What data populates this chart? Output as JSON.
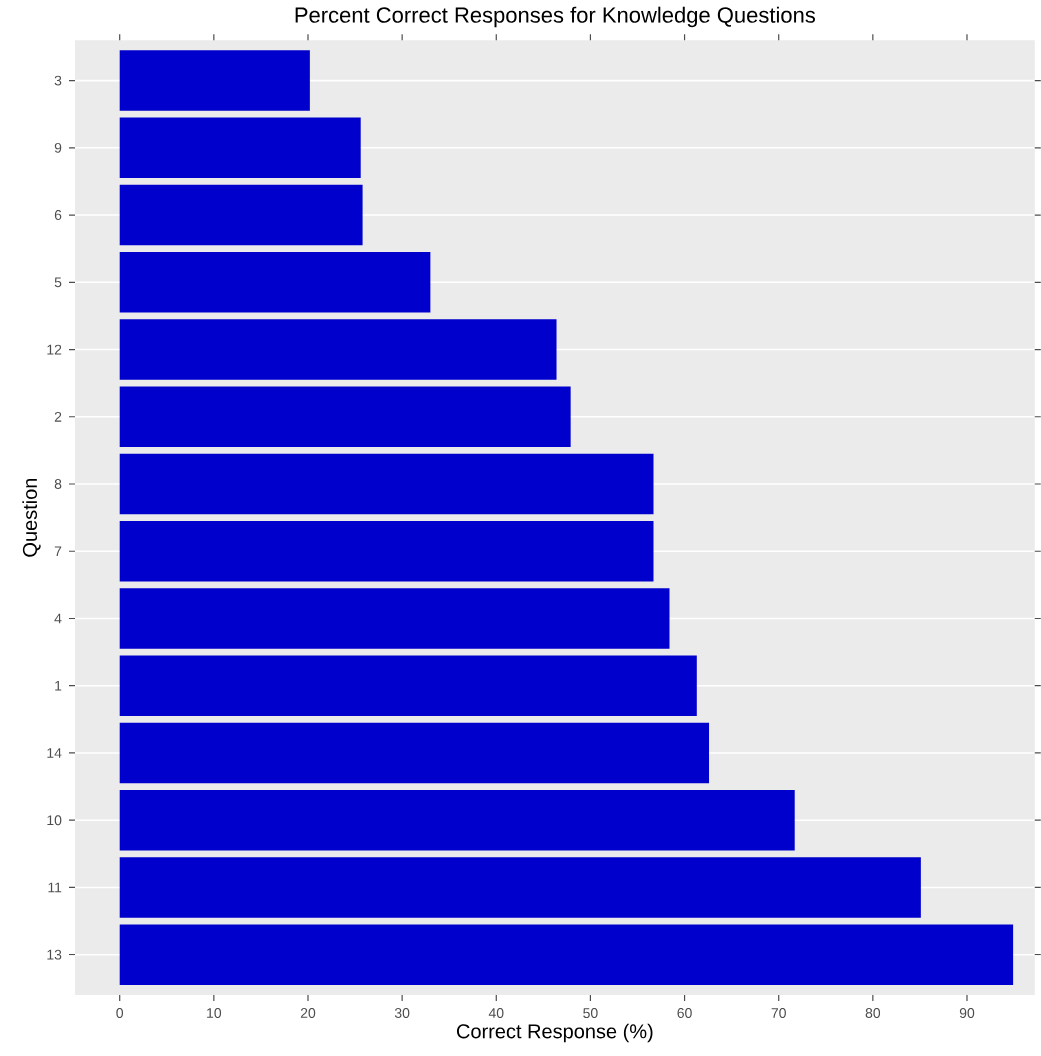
{
  "chart_data": {
    "type": "bar",
    "orientation": "horizontal",
    "title": "Percent Correct Responses for Knowledge Questions",
    "xlabel": "Correct Response (%)",
    "ylabel": "Question",
    "categories": [
      "3",
      "9",
      "6",
      "5",
      "12",
      "2",
      "8",
      "7",
      "4",
      "1",
      "14",
      "10",
      "11",
      "13"
    ],
    "values": [
      20.2,
      25.6,
      25.8,
      33.0,
      46.4,
      47.9,
      56.7,
      56.7,
      58.4,
      61.3,
      62.6,
      71.7,
      85.1,
      94.9
    ],
    "color": "#0000cd",
    "xlim": [
      -4.75,
      97.2
    ],
    "xticks": [
      0,
      10,
      20,
      30,
      40,
      50,
      60,
      70,
      80,
      90
    ],
    "grid": "y"
  }
}
